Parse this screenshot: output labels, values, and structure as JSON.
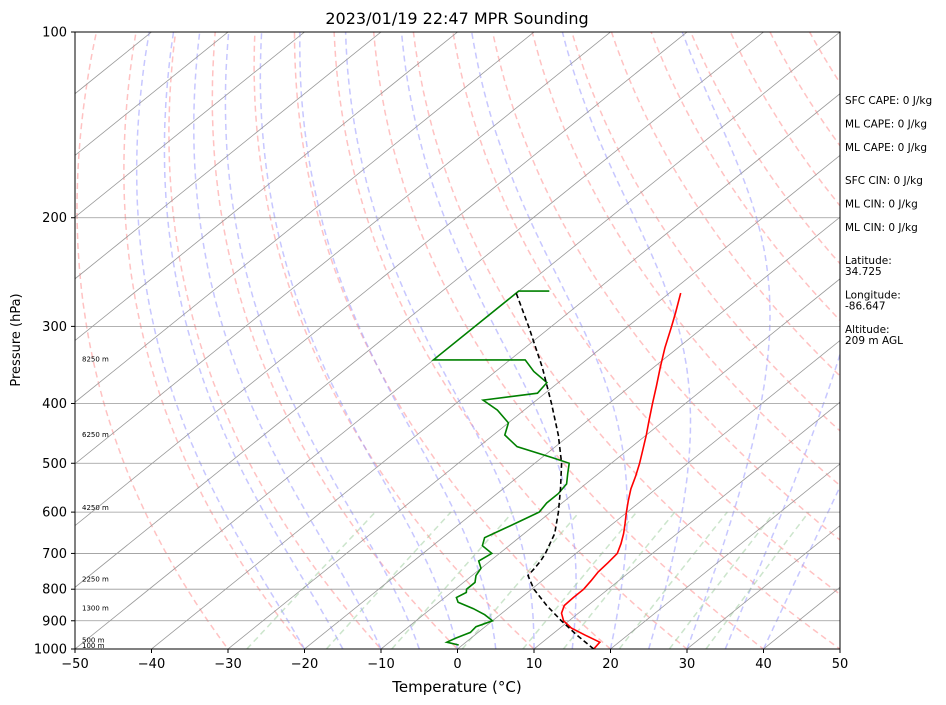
{
  "chart_data": {
    "type": "line",
    "title": "2023/01/19 22:47 MPR Sounding",
    "xlabel": "Temperature (°C)",
    "ylabel": "Pressure (hPa)",
    "xlim": [
      -50,
      50
    ],
    "ylim": [
      1000,
      100
    ],
    "y_scale": "log",
    "skew": true,
    "x_ticks": [
      -50,
      -40,
      -30,
      -20,
      -10,
      0,
      10,
      20,
      30,
      40,
      50
    ],
    "x_tick_labels": [
      "−50",
      "−40",
      "−30",
      "−20",
      "−10",
      "0",
      "10",
      "20",
      "30",
      "40",
      "50"
    ],
    "y_ticks": [
      1000,
      900,
      800,
      700,
      600,
      500,
      400,
      300,
      200,
      100
    ],
    "y_tick_labels": [
      "1000",
      "900",
      "800",
      "700",
      "600",
      "500",
      "400",
      "300",
      "200",
      "100"
    ],
    "grid": true,
    "colors": {
      "temperature": "#ff0000",
      "dewpoint": "#008000",
      "parcel": "#000000",
      "dry_adiabat": "#ff9999",
      "moist_adiabat": "#9999ff",
      "mixing_ratio": "#99cc99",
      "isotherm": "#999999",
      "isobar": "#999999"
    },
    "series": [
      {
        "key": "temperature",
        "pressure": [
          1000,
          975,
          950,
          925,
          900,
          875,
          850,
          825,
          800,
          775,
          750,
          725,
          700,
          675,
          650,
          625,
          600,
          575,
          550,
          525,
          500,
          475,
          450,
          425,
          400,
          375,
          350,
          325,
          300,
          285,
          265
        ],
        "values": [
          17.8,
          17.5,
          14.5,
          11.5,
          9.3,
          7.8,
          6.9,
          6.8,
          6.8,
          6.4,
          5.9,
          5.7,
          5.4,
          4.3,
          3.0,
          1.5,
          -0.1,
          -1.7,
          -3.3,
          -4.7,
          -6.3,
          -8.1,
          -10.0,
          -12.1,
          -14.3,
          -16.6,
          -19.1,
          -21.7,
          -24.3,
          -26.0,
          -28.5
        ]
      },
      {
        "key": "dewpoint",
        "pressure": [
          985,
          975,
          960,
          940,
          920,
          900,
          880,
          860,
          840,
          825,
          810,
          800,
          780,
          760,
          740,
          720,
          700,
          680,
          660,
          640,
          620,
          600,
          580,
          560,
          540,
          520,
          500,
          490,
          470,
          450,
          430,
          410,
          395,
          385,
          370,
          355,
          340,
          340,
          263,
          263
        ],
        "values": [
          -0.5,
          -2.5,
          -2.0,
          -1.0,
          -1.2,
          0.0,
          -2.0,
          -4.5,
          -7.5,
          -8.5,
          -8.0,
          -8.5,
          -8.5,
          -9.5,
          -10.0,
          -11.5,
          -11.0,
          -13.5,
          -14.5,
          -13.5,
          -12.5,
          -11.5,
          -12.0,
          -12.0,
          -12.5,
          -14.0,
          -15.5,
          -18.5,
          -25.0,
          -28.5,
          -30.0,
          -33.5,
          -37.0,
          -31.0,
          -31.5,
          -35.0,
          -38.0,
          -50.0,
          -50.0,
          -46.0
        ]
      },
      {
        "key": "parcel",
        "pressure": [
          1000,
          950,
          900,
          850,
          800,
          760,
          740,
          720,
          700,
          650,
          600,
          550,
          500,
          450,
          400,
          350,
          300,
          265
        ],
        "values": [
          17.8,
          13.4,
          9.0,
          4.6,
          0.3,
          -2.7,
          -3.0,
          -3.4,
          -4.0,
          -6.0,
          -9.0,
          -12.5,
          -16.5,
          -21.5,
          -27.5,
          -34.5,
          -43.0,
          -50.0
        ]
      }
    ],
    "altitude_labels": [
      {
        "pressure": 1000,
        "text": "100 m"
      },
      {
        "pressure": 980,
        "text": "500 m"
      },
      {
        "pressure": 870,
        "text": "1300 m"
      },
      {
        "pressure": 780,
        "text": "2250 m"
      },
      {
        "pressure": 598,
        "text": "4250 m"
      },
      {
        "pressure": 455,
        "text": "6250 m"
      },
      {
        "pressure": 343,
        "text": "8250 m"
      }
    ],
    "info_panel": [
      "SFC CAPE: 0 J/kg",
      "ML CAPE: 0 J/kg",
      "ML CAPE: 0 J/kg",
      "SFC CIN: 0 J/kg",
      "ML CIN: 0 J/kg",
      "ML CIN: 0 J/kg",
      "Latitude:",
      "34.725",
      "Longitude:",
      "-86.647",
      "Altitude:",
      "209 m AGL"
    ]
  }
}
